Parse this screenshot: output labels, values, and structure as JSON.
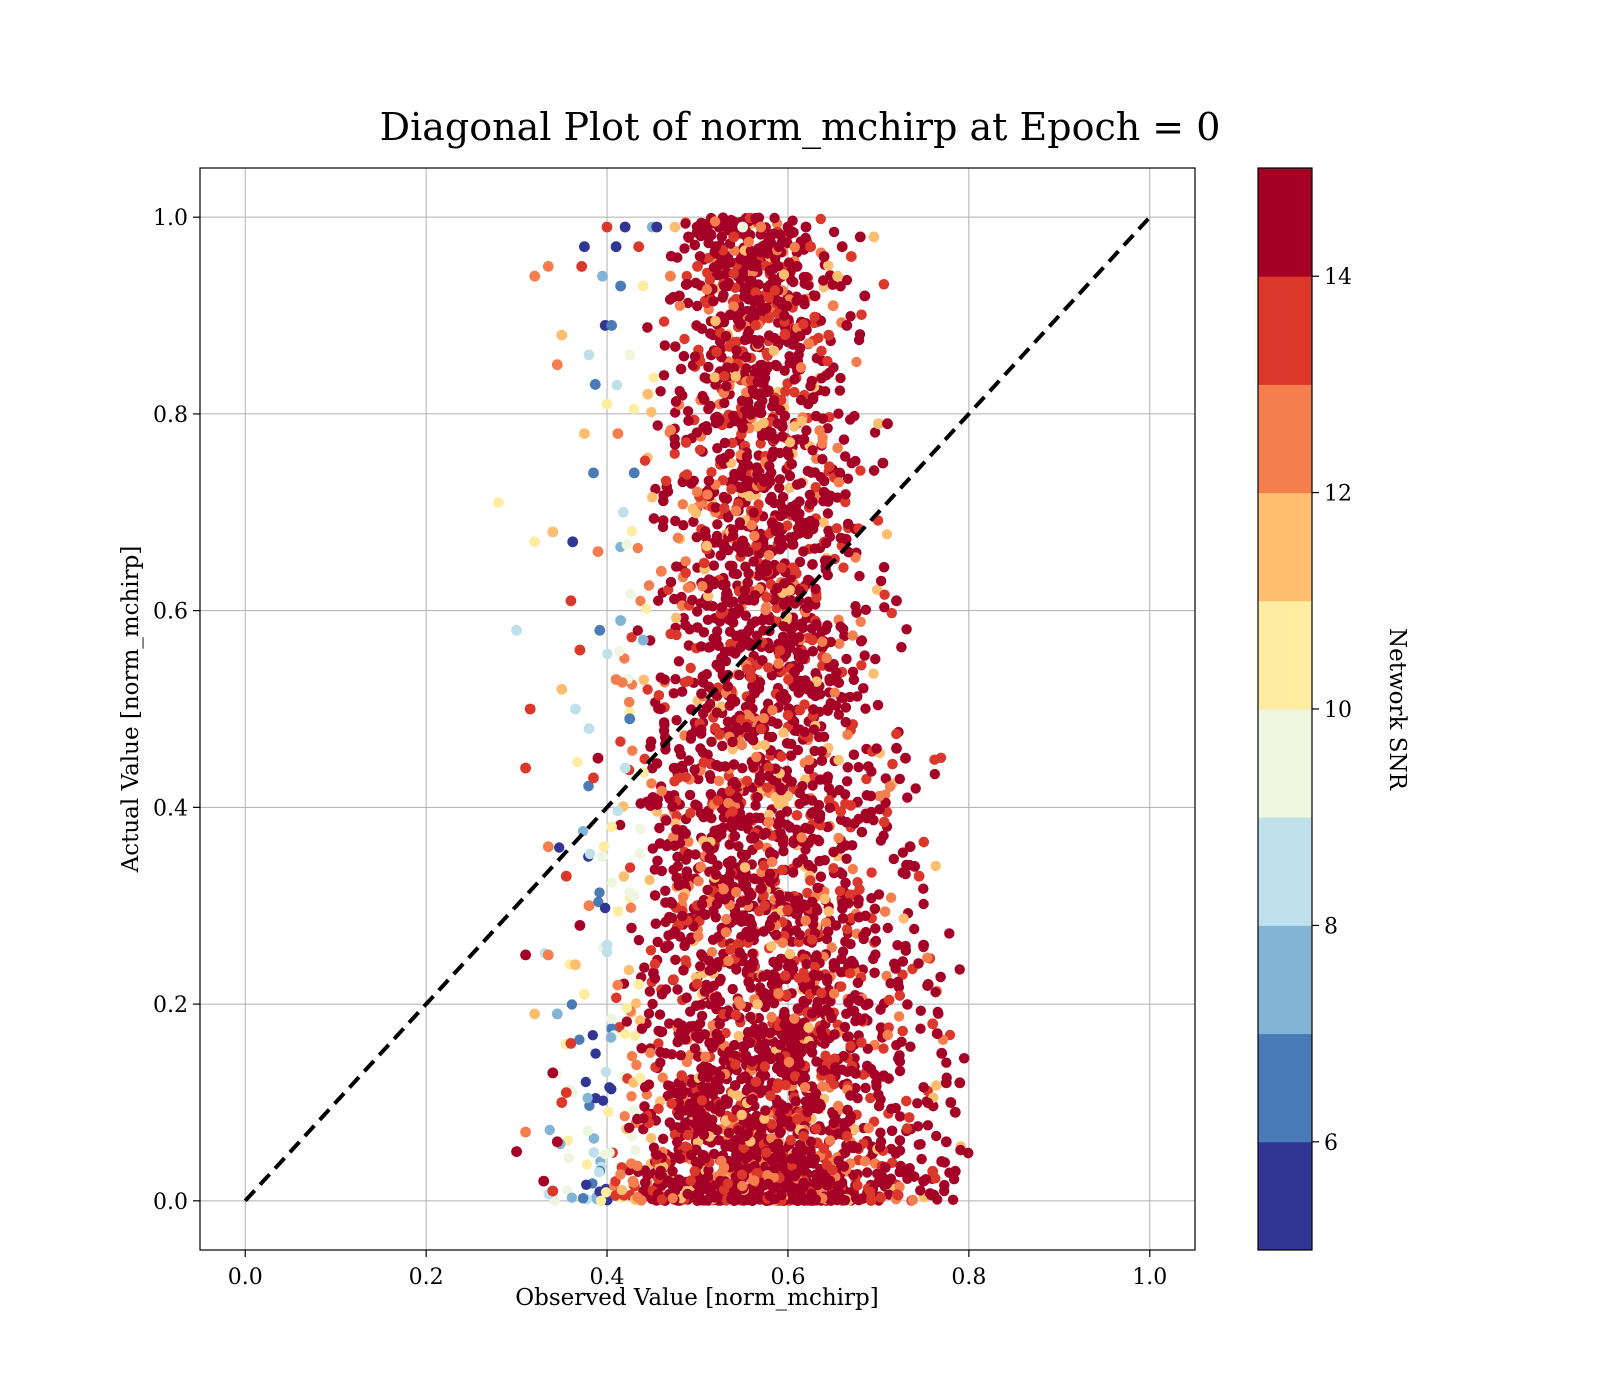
{
  "chart_data": {
    "type": "scatter",
    "title": "Diagonal Plot of norm_mchirp at Epoch = 0",
    "xlabel": "Observed Value [norm_mchirp]",
    "ylabel": "Actual Value [norm_mchirp]",
    "xlim": [
      -0.05,
      1.05
    ],
    "ylim": [
      -0.05,
      1.05
    ],
    "xticks": [
      "0.0",
      "0.2",
      "0.4",
      "0.6",
      "0.8",
      "1.0"
    ],
    "yticks": [
      "0.0",
      "0.2",
      "0.4",
      "0.6",
      "0.8",
      "1.0"
    ],
    "grid": true,
    "reference_line": {
      "style": "dashed",
      "color": "#000000",
      "from": [
        0,
        0
      ],
      "to": [
        1,
        1
      ]
    },
    "colorbar": {
      "label": "Network SNR",
      "range": [
        5,
        15
      ],
      "ticks": [
        "6",
        "8",
        "10",
        "12",
        "14"
      ],
      "levels": [
        {
          "from": 5,
          "to": 6,
          "color": "#313695"
        },
        {
          "from": 6,
          "to": 7,
          "color": "#4a7bb7"
        },
        {
          "from": 7,
          "to": 8,
          "color": "#82b4d5"
        },
        {
          "from": 8,
          "to": 9,
          "color": "#bfe1ec"
        },
        {
          "from": 9,
          "to": 10,
          "color": "#eef6e0"
        },
        {
          "from": 10,
          "to": 11,
          "color": "#feeda1"
        },
        {
          "from": 11,
          "to": 12,
          "color": "#fdbe70"
        },
        {
          "from": 12,
          "to": 13,
          "color": "#f57e4e"
        },
        {
          "from": 13,
          "to": 14,
          "color": "#db382b"
        },
        {
          "from": 14,
          "to": 15,
          "color": "#a50026"
        }
      ]
    },
    "points": [
      [
        0.28,
        0.71,
        10.5
      ],
      [
        0.3,
        0.58,
        8.5
      ],
      [
        0.31,
        0.25,
        14.5
      ],
      [
        0.31,
        0.44,
        13.5
      ],
      [
        0.315,
        0.5,
        13.5
      ],
      [
        0.32,
        0.67,
        10.5
      ],
      [
        0.32,
        0.94,
        12.5
      ],
      [
        0.335,
        0.95,
        12.5
      ],
      [
        0.335,
        0.36,
        12.5
      ],
      [
        0.34,
        0.68,
        11.5
      ],
      [
        0.345,
        0.85,
        12.5
      ],
      [
        0.35,
        0.88,
        11.5
      ],
      [
        0.35,
        0.52,
        11.5
      ],
      [
        0.355,
        0.33,
        13.5
      ],
      [
        0.36,
        0.61,
        13.5
      ],
      [
        0.362,
        0.67,
        5.5
      ],
      [
        0.365,
        0.5,
        8.5
      ],
      [
        0.37,
        0.56,
        13.5
      ],
      [
        0.372,
        0.95,
        13.5
      ],
      [
        0.375,
        0.97,
        5.5
      ],
      [
        0.375,
        0.78,
        11.5
      ],
      [
        0.38,
        0.86,
        8.5
      ],
      [
        0.38,
        0.48,
        8.5
      ],
      [
        0.385,
        0.74,
        6.5
      ],
      [
        0.387,
        0.83,
        6.5
      ],
      [
        0.39,
        0.66,
        12.5
      ],
      [
        0.392,
        0.58,
        6.5
      ],
      [
        0.395,
        0.94,
        7.5
      ],
      [
        0.398,
        0.89,
        5.5
      ],
      [
        0.4,
        0.99,
        13.5
      ],
      [
        0.4,
        0.81,
        10.5
      ],
      [
        0.405,
        0.89,
        6.5
      ],
      [
        0.41,
        0.97,
        5.5
      ],
      [
        0.412,
        0.78,
        12.5
      ],
      [
        0.415,
        0.93,
        6.5
      ],
      [
        0.418,
        0.7,
        8.5
      ],
      [
        0.42,
        0.99,
        5.5
      ],
      [
        0.425,
        0.86,
        9.5
      ],
      [
        0.43,
        0.74,
        6.5
      ],
      [
        0.435,
        0.97,
        13.5
      ],
      [
        0.44,
        0.93,
        10.5
      ],
      [
        0.445,
        0.82,
        11.5
      ],
      [
        0.45,
        0.99,
        7.5
      ],
      [
        0.455,
        0.99,
        5.5
      ],
      [
        0.46,
        0.64,
        12.5
      ],
      [
        0.47,
        0.94,
        12.5
      ],
      [
        0.475,
        0.99,
        11.5
      ],
      [
        0.48,
        0.92,
        14.5
      ],
      [
        0.49,
        0.98,
        14.5
      ],
      [
        0.5,
        0.95,
        13.5
      ],
      [
        0.51,
        0.99,
        14.5
      ],
      [
        0.52,
        0.97,
        14.5
      ],
      [
        0.53,
        0.93,
        14.5
      ],
      [
        0.54,
        0.98,
        13.5
      ],
      [
        0.55,
        0.99,
        9.5
      ],
      [
        0.56,
        0.96,
        14.5
      ],
      [
        0.57,
        0.99,
        12.5
      ],
      [
        0.58,
        0.98,
        14.5
      ],
      [
        0.59,
        0.97,
        14.5
      ],
      [
        0.6,
        0.99,
        14.5
      ],
      [
        0.61,
        0.95,
        14.5
      ],
      [
        0.62,
        0.99,
        14.5
      ],
      [
        0.625,
        0.97,
        13.5
      ],
      [
        0.63,
        0.92,
        14.5
      ],
      [
        0.64,
        0.96,
        14.5
      ],
      [
        0.645,
        0.88,
        13.5
      ],
      [
        0.65,
        0.91,
        12.5
      ],
      [
        0.655,
        0.94,
        11.5
      ],
      [
        0.66,
        0.97,
        14.5
      ],
      [
        0.665,
        0.89,
        14.5
      ],
      [
        0.67,
        0.96,
        13.5
      ],
      [
        0.68,
        0.98,
        14.5
      ],
      [
        0.685,
        0.92,
        14.5
      ],
      [
        0.695,
        0.98,
        11.5
      ],
      [
        0.7,
        0.79,
        11.5
      ],
      [
        0.705,
        0.75,
        14.5
      ],
      [
        0.71,
        0.79,
        14.5
      ],
      [
        0.72,
        0.61,
        14.5
      ],
      [
        0.72,
        0.46,
        14.5
      ],
      [
        0.73,
        0.45,
        14.5
      ],
      [
        0.735,
        0.36,
        14.5
      ],
      [
        0.74,
        0.34,
        14.5
      ],
      [
        0.745,
        0.33,
        13.5
      ],
      [
        0.75,
        0.26,
        14.5
      ],
      [
        0.755,
        0.22,
        14.5
      ],
      [
        0.76,
        0.18,
        13.5
      ],
      [
        0.765,
        0.17,
        14.5
      ],
      [
        0.77,
        0.15,
        14.5
      ],
      [
        0.775,
        0.12,
        14.5
      ],
      [
        0.78,
        0.1,
        14.5
      ],
      [
        0.785,
        0.09,
        14.5
      ],
      [
        0.79,
        0.12,
        14.5
      ],
      [
        0.785,
        0.03,
        14.5
      ],
      [
        0.775,
        0.06,
        14.5
      ],
      [
        0.77,
        0.04,
        14.5
      ],
      [
        0.76,
        0.03,
        13.5
      ],
      [
        0.75,
        0.02,
        14.5
      ],
      [
        0.33,
        0.02,
        14.5
      ],
      [
        0.34,
        0.01,
        13.5
      ],
      [
        0.345,
        0.06,
        14.5
      ],
      [
        0.35,
        0.1,
        13.5
      ],
      [
        0.3,
        0.05,
        14.5
      ],
      [
        0.31,
        0.07,
        12.5
      ],
      [
        0.32,
        0.19,
        11.5
      ],
      [
        0.335,
        0.25,
        12.5
      ],
      [
        0.34,
        0.13,
        14.5
      ],
      [
        0.345,
        0.19,
        7.5
      ],
      [
        0.355,
        0.11,
        13.5
      ],
      [
        0.36,
        0.16,
        13.5
      ],
      [
        0.365,
        0.24,
        11.5
      ],
      [
        0.37,
        0.28,
        14.5
      ],
      [
        0.375,
        0.21,
        10.5
      ],
      [
        0.38,
        0.3,
        12.5
      ],
      [
        0.385,
        0.43,
        13.5
      ],
      [
        0.39,
        0.45,
        14.5
      ],
      [
        0.395,
        0.35,
        9.5
      ],
      [
        0.4,
        0.26,
        8.5
      ],
      [
        0.405,
        0.38,
        10.5
      ],
      [
        0.41,
        0.53,
        12.5
      ],
      [
        0.415,
        0.59,
        7.5
      ],
      [
        0.42,
        0.44,
        8.5
      ],
      [
        0.425,
        0.49,
        6.5
      ],
      [
        0.43,
        0.31,
        9.5
      ],
      [
        0.435,
        0.22,
        10.5
      ],
      [
        0.44,
        0.57,
        7.5
      ]
    ]
  }
}
